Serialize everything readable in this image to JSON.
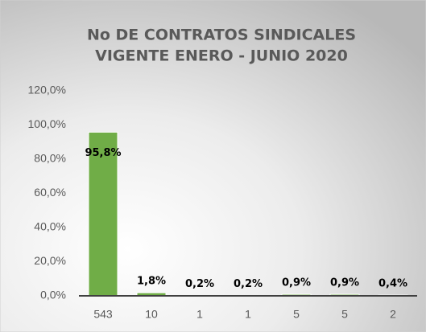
{
  "chart_data": {
    "type": "bar",
    "title": [
      "No DE CONTRATOS SINDICALES",
      "VIGENTE ENERO - JUNIO 2020"
    ],
    "categories": [
      "543",
      "10",
      "1",
      "1",
      "5",
      "5",
      "2"
    ],
    "values": [
      95.8,
      1.8,
      0.2,
      0.2,
      0.9,
      0.9,
      0.4
    ],
    "value_labels": [
      "95,8%",
      "1,8%",
      "0,2%",
      "0,2%",
      "0,9%",
      "0,9%",
      "0,4%"
    ],
    "color": "#70ad47",
    "ylim": [
      0,
      120
    ],
    "yticks": [
      {
        "value": 0,
        "label": "0,0%"
      },
      {
        "value": 20,
        "label": "20,0%"
      },
      {
        "value": 40,
        "label": "40,0%"
      },
      {
        "value": 60,
        "label": "60,0%"
      },
      {
        "value": 80,
        "label": "80,0%"
      },
      {
        "value": 100,
        "label": "100,0%"
      },
      {
        "value": 120,
        "label": "120,0%"
      }
    ],
    "grid": false
  }
}
